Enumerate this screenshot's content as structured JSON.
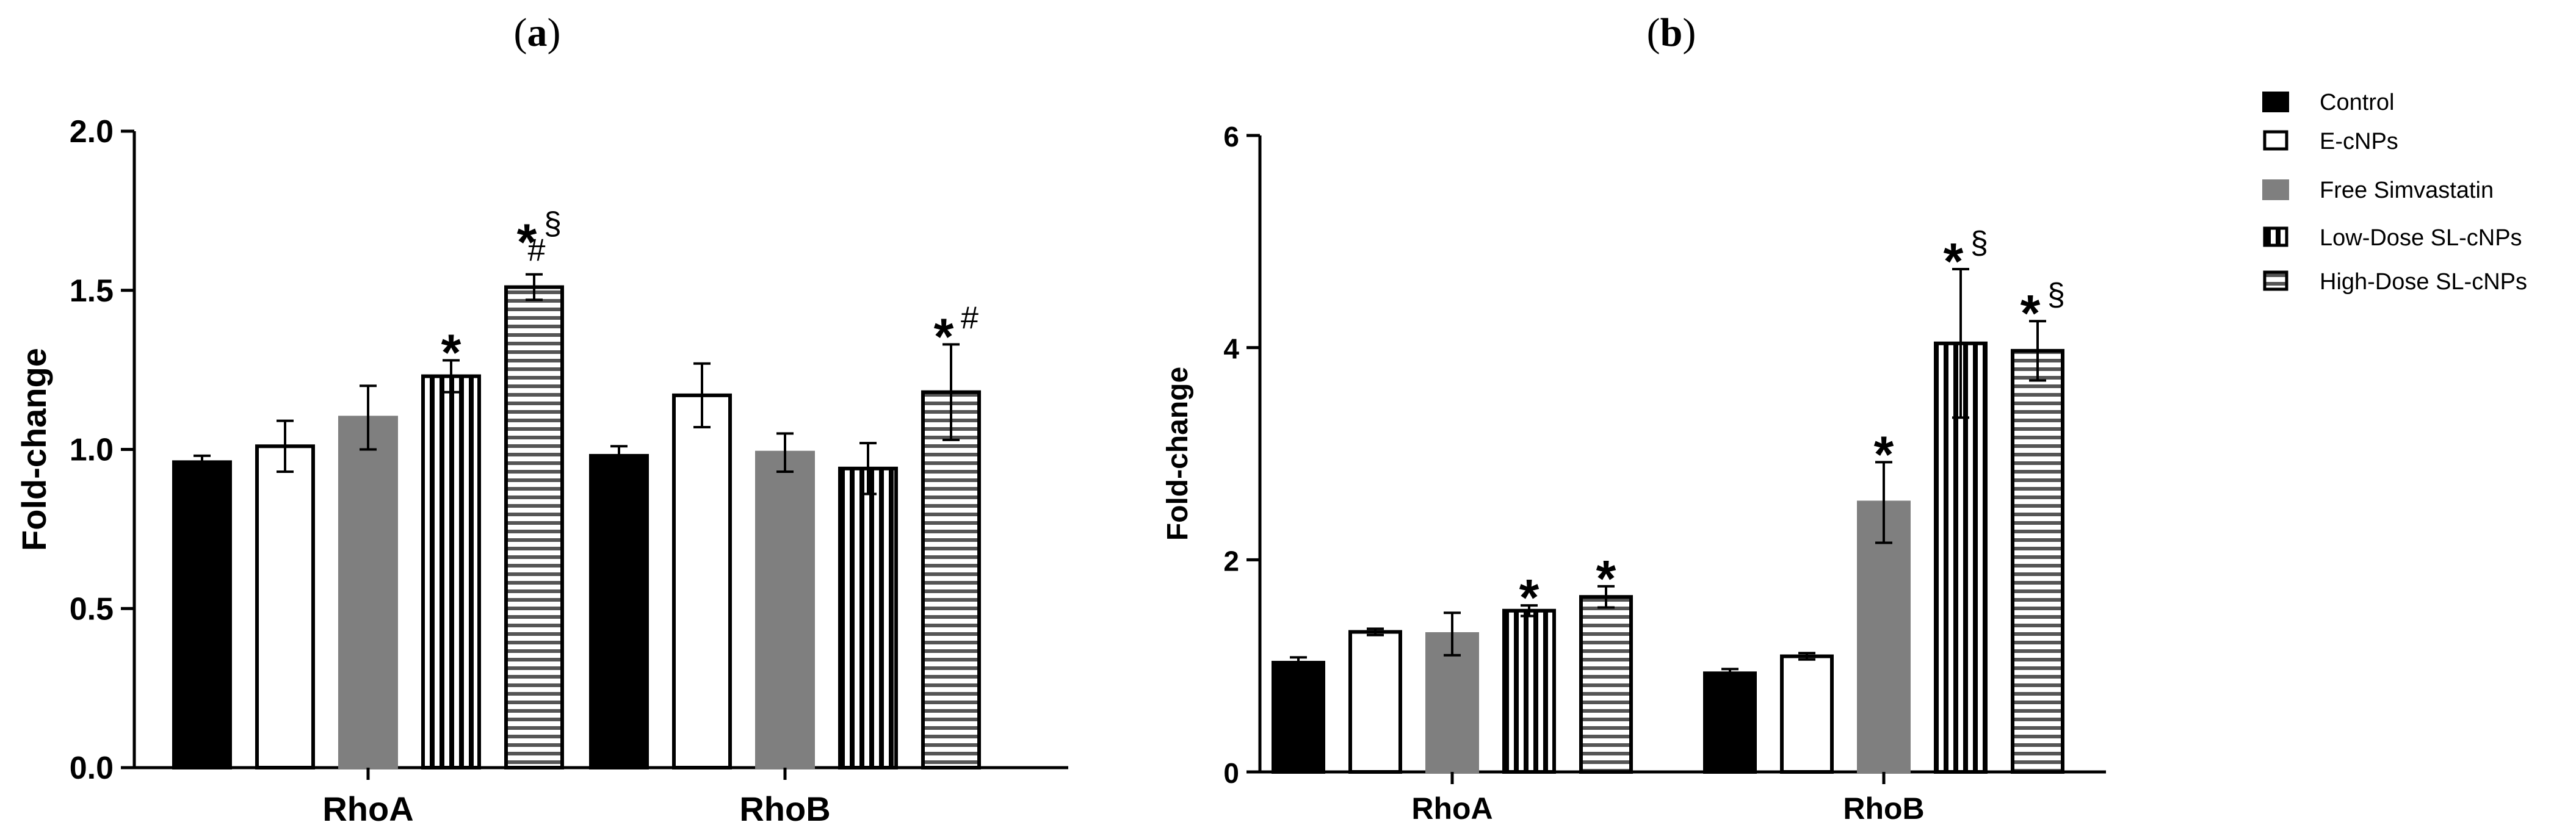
{
  "figure": {
    "panel_labels": [
      "a",
      "b"
    ]
  },
  "legend": {
    "items": [
      {
        "label": "Control",
        "pattern": "solid-black"
      },
      {
        "label": "E-cNPs",
        "pattern": "white"
      },
      {
        "label": "Free Simvastatin",
        "pattern": "solid-gray"
      },
      {
        "label": "Low-Dose SL-cNPs",
        "pattern": "vertical-stripes"
      },
      {
        "label": "High-Dose SL-cNPs",
        "pattern": "horizontal-stripes"
      }
    ]
  },
  "colors": {
    "control": "#000000",
    "e_cnps": "#ffffff",
    "free_simvastatin": "#7f7f7f",
    "stripe": "#000000"
  },
  "chart_data": [
    {
      "type": "bar",
      "panel": "a",
      "title": "",
      "xlabel": "",
      "ylabel": "Fold-change",
      "ylim": [
        0,
        2.0
      ],
      "yticks": [
        "0.0",
        "0.5",
        "1.0",
        "1.5",
        "2.0"
      ],
      "categories": [
        "RhoA",
        "RhoB"
      ],
      "series": [
        {
          "name": "Control",
          "values": [
            0.96,
            0.98
          ],
          "errors": [
            0.02,
            0.03
          ]
        },
        {
          "name": "E-cNPs",
          "values": [
            1.01,
            1.17
          ],
          "errors": [
            0.08,
            0.1
          ]
        },
        {
          "name": "Free Simvastatin",
          "values": [
            1.1,
            0.99
          ],
          "errors": [
            0.1,
            0.06
          ]
        },
        {
          "name": "Low-Dose SL-cNPs",
          "values": [
            1.23,
            0.94
          ],
          "errors": [
            0.05,
            0.08
          ]
        },
        {
          "name": "High-Dose SL-cNPs",
          "values": [
            1.51,
            1.18
          ],
          "errors": [
            0.04,
            0.15
          ]
        }
      ],
      "annotations": [
        {
          "category": "RhoA",
          "series": "Low-Dose SL-cNPs",
          "star": "*",
          "sym": ""
        },
        {
          "category": "RhoA",
          "series": "High-Dose SL-cNPs",
          "star": "*",
          "sym": "§",
          "sym2": "#"
        },
        {
          "category": "RhoB",
          "series": "High-Dose SL-cNPs",
          "star": "*",
          "sym": "#"
        }
      ]
    },
    {
      "type": "bar",
      "panel": "b",
      "title": "",
      "xlabel": "",
      "ylabel": "Fold-change",
      "ylim": [
        0,
        6
      ],
      "yticks": [
        "0",
        "2",
        "4",
        "6"
      ],
      "categories": [
        "RhoA",
        "RhoB"
      ],
      "series": [
        {
          "name": "Control",
          "values": [
            1.03,
            0.93
          ],
          "errors": [
            0.05,
            0.04
          ]
        },
        {
          "name": "E-cNPs",
          "values": [
            1.32,
            1.09
          ],
          "errors": [
            0.03,
            0.03
          ]
        },
        {
          "name": "Free Simvastatin",
          "values": [
            1.3,
            2.54
          ],
          "errors": [
            0.2,
            0.38
          ]
        },
        {
          "name": "Low-Dose SL-cNPs",
          "values": [
            1.52,
            4.04
          ],
          "errors": [
            0.05,
            0.7
          ]
        },
        {
          "name": "High-Dose SL-cNPs",
          "values": [
            1.65,
            3.97
          ],
          "errors": [
            0.1,
            0.28
          ]
        }
      ],
      "annotations": [
        {
          "category": "RhoA",
          "series": "Low-Dose SL-cNPs",
          "star": "*",
          "sym": ""
        },
        {
          "category": "RhoA",
          "series": "High-Dose SL-cNPs",
          "star": "*",
          "sym": ""
        },
        {
          "category": "RhoB",
          "series": "Free Simvastatin",
          "star": "*",
          "sym": ""
        },
        {
          "category": "RhoB",
          "series": "Low-Dose SL-cNPs",
          "star": "*",
          "sym": "§"
        },
        {
          "category": "RhoB",
          "series": "High-Dose SL-cNPs",
          "star": "*",
          "sym": "§"
        }
      ]
    }
  ]
}
